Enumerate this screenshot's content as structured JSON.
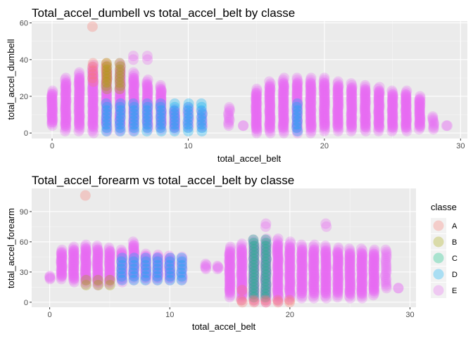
{
  "chart_data": [
    {
      "type": "scatter",
      "title": "Total_accel_dumbell vs total_accel_belt by classe",
      "xlabel": "total_accel_belt",
      "ylabel": "total_accel_dumbell",
      "xlim": [
        -1.5,
        30.5
      ],
      "ylim": [
        -3,
        61
      ],
      "xticks": [
        0,
        10,
        20,
        30
      ],
      "yticks": [
        0,
        20,
        40,
        60
      ],
      "grid": true,
      "columns": [
        {
          "x": 0,
          "ymin": 4,
          "ymax": 23,
          "spread": 1
        },
        {
          "x": 1,
          "ymin": 1,
          "ymax": 30,
          "spread": 1
        },
        {
          "x": 2,
          "ymin": 1,
          "ymax": 33,
          "spread": 1
        },
        {
          "x": 3,
          "ymin": 0,
          "ymax": 37,
          "spread": 1
        },
        {
          "x": 4,
          "ymin": 1,
          "ymax": 37,
          "spread": 1
        },
        {
          "x": 5,
          "ymin": 1,
          "ymax": 38,
          "spread": 1
        },
        {
          "x": 6,
          "ymin": 1,
          "ymax": 33,
          "spread": 1
        },
        {
          "x": 7,
          "ymin": 2,
          "ymax": 29,
          "spread": 0.6
        },
        {
          "x": 8,
          "ymin": 2,
          "ymax": 26,
          "spread": 0.6
        },
        {
          "x": 9,
          "ymin": 2,
          "ymax": 13,
          "spread": 0.6
        },
        {
          "x": 10,
          "ymin": 3,
          "ymax": 14,
          "spread": 0.5
        },
        {
          "x": 11,
          "ymin": 3,
          "ymax": 12,
          "spread": 0.4
        },
        {
          "x": 13,
          "ymin": 4,
          "ymax": 14,
          "spread": 0.1
        },
        {
          "x": 14,
          "ymin": 4,
          "ymax": 4,
          "spread": 0.1
        },
        {
          "x": 15,
          "ymin": 0,
          "ymax": 24,
          "spread": 0.6
        },
        {
          "x": 16,
          "ymin": 0,
          "ymax": 28,
          "spread": 1
        },
        {
          "x": 17,
          "ymin": 0,
          "ymax": 30,
          "spread": 1
        },
        {
          "x": 18,
          "ymin": 0,
          "ymax": 30,
          "spread": 1
        },
        {
          "x": 19,
          "ymin": 0,
          "ymax": 30,
          "spread": 1
        },
        {
          "x": 20,
          "ymin": 1,
          "ymax": 30,
          "spread": 1
        },
        {
          "x": 21,
          "ymin": 1,
          "ymax": 28,
          "spread": 1
        },
        {
          "x": 22,
          "ymin": 1,
          "ymax": 27,
          "spread": 1
        },
        {
          "x": 23,
          "ymin": 1,
          "ymax": 26,
          "spread": 1
        },
        {
          "x": 24,
          "ymin": 1,
          "ymax": 25,
          "spread": 1
        },
        {
          "x": 25,
          "ymin": 1,
          "ymax": 23,
          "spread": 1
        },
        {
          "x": 26,
          "ymin": 1,
          "ymax": 23,
          "spread": 1
        },
        {
          "x": 27,
          "ymin": 2,
          "ymax": 20,
          "spread": 1
        },
        {
          "x": 28,
          "ymin": 2,
          "ymax": 9,
          "spread": 0.5
        },
        {
          "x": 29,
          "ymin": 4,
          "ymax": 4,
          "spread": 0.1
        }
      ],
      "highlights": [
        {
          "classe": "D",
          "x": [
            4,
            5,
            6,
            7,
            8,
            9,
            10,
            11,
            18
          ],
          "ymin": 1,
          "ymax": 16
        },
        {
          "classe": "A",
          "x": [
            3,
            4
          ],
          "ymin": 28,
          "ymax": 38
        },
        {
          "classe": "B",
          "x": [
            4,
            5
          ],
          "ymin": 24,
          "ymax": 38
        },
        {
          "classe": "A",
          "x": [
            3
          ],
          "ymin": 58,
          "ymax": 58
        },
        {
          "classe": "E",
          "x": [
            6,
            7
          ],
          "ymin": 40,
          "ymax": 42
        }
      ]
    },
    {
      "type": "scatter",
      "title": "Total_accel_forearm vs total_accel_belt by classe",
      "xlabel": "total_accel_belt",
      "ylabel": "total_accel_forearm",
      "xlim": [
        -1.5,
        30.5
      ],
      "ylim": [
        -5,
        113
      ],
      "xticks": [
        0,
        10,
        20,
        30
      ],
      "yticks": [
        0,
        30,
        60,
        90
      ],
      "grid": true,
      "columns": [
        {
          "x": 0,
          "ymin": 23,
          "ymax": 26,
          "spread": 1
        },
        {
          "x": 1,
          "ymin": 23,
          "ymax": 52,
          "spread": 1
        },
        {
          "x": 2,
          "ymin": 20,
          "ymax": 55,
          "spread": 1
        },
        {
          "x": 3,
          "ymin": 18,
          "ymax": 57,
          "spread": 1
        },
        {
          "x": 4,
          "ymin": 17,
          "ymax": 56,
          "spread": 1
        },
        {
          "x": 5,
          "ymin": 18,
          "ymax": 54,
          "spread": 1
        },
        {
          "x": 6,
          "ymin": 20,
          "ymax": 52,
          "spread": 1
        },
        {
          "x": 7,
          "ymin": 22,
          "ymax": 60,
          "spread": 0.6
        },
        {
          "x": 8,
          "ymin": 22,
          "ymax": 48,
          "spread": 0.6
        },
        {
          "x": 9,
          "ymin": 22,
          "ymax": 47,
          "spread": 0.6
        },
        {
          "x": 10,
          "ymin": 22,
          "ymax": 46,
          "spread": 0.6
        },
        {
          "x": 11,
          "ymin": 22,
          "ymax": 45,
          "spread": 0.4
        },
        {
          "x": 13,
          "ymin": 33,
          "ymax": 38,
          "spread": 0.1
        },
        {
          "x": 14,
          "ymin": 33,
          "ymax": 36,
          "spread": 0.1
        },
        {
          "x": 15,
          "ymin": 5,
          "ymax": 55,
          "spread": 0.6
        },
        {
          "x": 16,
          "ymin": 2,
          "ymax": 58,
          "spread": 1
        },
        {
          "x": 17,
          "ymin": 1,
          "ymax": 62,
          "spread": 1
        },
        {
          "x": 18,
          "ymin": 0,
          "ymax": 63,
          "spread": 1
        },
        {
          "x": 19,
          "ymin": 1,
          "ymax": 63,
          "spread": 1
        },
        {
          "x": 20,
          "ymin": 3,
          "ymax": 60,
          "spread": 1
        },
        {
          "x": 21,
          "ymin": 4,
          "ymax": 57,
          "spread": 1
        },
        {
          "x": 22,
          "ymin": 4,
          "ymax": 57,
          "spread": 1
        },
        {
          "x": 23,
          "ymin": 4,
          "ymax": 56,
          "spread": 1
        },
        {
          "x": 24,
          "ymin": 5,
          "ymax": 54,
          "spread": 1
        },
        {
          "x": 25,
          "ymin": 4,
          "ymax": 53,
          "spread": 1
        },
        {
          "x": 26,
          "ymin": 4,
          "ymax": 53,
          "spread": 1
        },
        {
          "x": 27,
          "ymin": 7,
          "ymax": 52,
          "spread": 0.8
        },
        {
          "x": 28,
          "ymin": 14,
          "ymax": 52,
          "spread": 0.5
        },
        {
          "x": 29,
          "ymin": 14,
          "ymax": 14,
          "spread": 0.1
        }
      ],
      "highlights": [
        {
          "classe": "D",
          "x": [
            6,
            7,
            8,
            9,
            10,
            11
          ],
          "ymin": 22,
          "ymax": 44
        },
        {
          "classe": "B",
          "x": [
            3,
            4,
            5
          ],
          "ymin": 17,
          "ymax": 22
        },
        {
          "classe": "C",
          "x": [
            17,
            18
          ],
          "ymin": 5,
          "ymax": 62
        },
        {
          "classe": "A",
          "x": [
            16,
            17,
            18,
            19,
            20
          ],
          "ymin": 0,
          "ymax": 2
        },
        {
          "classe": "A",
          "x": [
            3
          ],
          "ymin": 106,
          "ymax": 106
        },
        {
          "classe": "A",
          "x": [
            16
          ],
          "ymin": 12,
          "ymax": 12
        },
        {
          "classe": "E",
          "x": [
            18,
            23
          ],
          "ymin": 75,
          "ymax": 78
        }
      ]
    }
  ],
  "legend": {
    "title": "classe",
    "placement": "right",
    "entries": [
      {
        "label": "A",
        "color": "#F8766D"
      },
      {
        "label": "B",
        "color": "#A3A500"
      },
      {
        "label": "C",
        "color": "#00BF7D"
      },
      {
        "label": "D",
        "color": "#00B0F6"
      },
      {
        "label": "E",
        "color": "#E76BF3"
      }
    ]
  }
}
